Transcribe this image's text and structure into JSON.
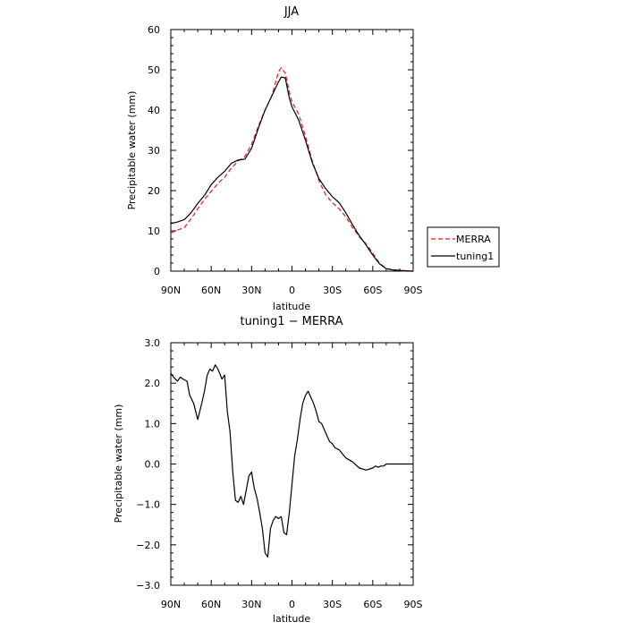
{
  "chart_data": [
    {
      "type": "line",
      "title": "JJA",
      "xlabel": "latitude",
      "ylabel": "Precipitable water (mm)",
      "xlim": [
        90,
        -90
      ],
      "ylim": [
        0,
        60
      ],
      "x_ticks": [
        90,
        60,
        30,
        0,
        -30,
        -60,
        -90
      ],
      "x_tick_labels": [
        "90N",
        "60N",
        "30N",
        "0",
        "30S",
        "60S",
        "90S"
      ],
      "y_ticks": [
        0,
        10,
        20,
        30,
        40,
        50,
        60
      ],
      "y_tick_labels": [
        "0",
        "10",
        "20",
        "30",
        "40",
        "50",
        "60"
      ],
      "legend_placement": "outside-right",
      "series": [
        {
          "name": "MERRA",
          "color": "#e41a1c",
          "dash": "dashed",
          "x": [
            90,
            85,
            80,
            75,
            70,
            65,
            60,
            55,
            50,
            45,
            40,
            35,
            30,
            25,
            20,
            15,
            10,
            8,
            5,
            2,
            0,
            -5,
            -10,
            -15,
            -20,
            -25,
            -30,
            -35,
            -40,
            -45,
            -50,
            -55,
            -60,
            -65,
            -70,
            -75,
            -80,
            -85,
            -90
          ],
          "values": [
            9.5,
            10.2,
            10.8,
            13.0,
            15.5,
            17.8,
            19.8,
            21.8,
            23.3,
            25.6,
            27.3,
            28.5,
            31.5,
            36.0,
            40.0,
            43.5,
            49.5,
            50.5,
            49.2,
            44.5,
            42.0,
            39.0,
            33.5,
            27.5,
            22.5,
            19.0,
            17.0,
            15.5,
            13.5,
            10.8,
            8.5,
            6.8,
            4.5,
            2.0,
            0.7,
            0.3,
            0.1,
            0.0,
            0.0
          ]
        },
        {
          "name": "tuning1",
          "color": "#000000",
          "dash": "solid",
          "x": [
            90,
            85,
            80,
            75,
            70,
            65,
            60,
            55,
            50,
            45,
            40,
            35,
            30,
            25,
            20,
            15,
            10,
            8,
            5,
            2,
            0,
            -5,
            -10,
            -15,
            -20,
            -25,
            -30,
            -35,
            -40,
            -45,
            -50,
            -55,
            -60,
            -65,
            -70,
            -75,
            -80,
            -85,
            -90
          ],
          "values": [
            11.8,
            12.2,
            12.8,
            14.5,
            16.8,
            18.8,
            21.5,
            23.3,
            24.8,
            26.8,
            27.6,
            27.8,
            30.5,
            35.5,
            40.0,
            43.5,
            47.0,
            48.2,
            48.0,
            43.0,
            40.8,
            37.5,
            32.5,
            27.0,
            23.0,
            20.5,
            18.5,
            17.0,
            14.5,
            11.5,
            8.8,
            6.5,
            4.0,
            1.8,
            0.6,
            0.3,
            0.2,
            0.1,
            0.0
          ]
        }
      ]
    },
    {
      "type": "line",
      "title": "tuning1 − MERRA",
      "xlabel": "latitude",
      "ylabel": "Precipitable water (mm)",
      "xlim": [
        90,
        -90
      ],
      "ylim": [
        -3.0,
        3.0
      ],
      "x_ticks": [
        90,
        60,
        30,
        0,
        -30,
        -60,
        -90
      ],
      "x_tick_labels": [
        "90N",
        "60N",
        "30N",
        "0",
        "30S",
        "60S",
        "90S"
      ],
      "y_ticks": [
        -3.0,
        -2.0,
        -1.0,
        0.0,
        1.0,
        2.0,
        3.0
      ],
      "y_tick_labels": [
        "−3.0",
        "−2.0",
        "−1.0",
        "0.0",
        "1.0",
        "2.0",
        "3.0"
      ],
      "series": [
        {
          "color": "#000000",
          "dash": "solid",
          "x": [
            90,
            88,
            85,
            83,
            81,
            78,
            76,
            73,
            70,
            67,
            65,
            63,
            61,
            59,
            57,
            55,
            52,
            50,
            48,
            46,
            44,
            42,
            40,
            38,
            36,
            34,
            32,
            30,
            28,
            26,
            24,
            22,
            20,
            18,
            16,
            14,
            12,
            10,
            8,
            6,
            4,
            2,
            0,
            -2,
            -4,
            -6,
            -8,
            -10,
            -12,
            -14,
            -16,
            -18,
            -20,
            -22,
            -24,
            -26,
            -28,
            -30,
            -32,
            -35,
            -40,
            -45,
            -50,
            -55,
            -60,
            -62,
            -64,
            -66,
            -68,
            -70,
            -72,
            -74,
            -76,
            -78,
            -80,
            -82,
            -84,
            -86,
            -88,
            -90
          ],
          "values": [
            2.25,
            2.15,
            2.05,
            2.15,
            2.1,
            2.05,
            1.7,
            1.5,
            1.1,
            1.5,
            1.8,
            2.2,
            2.35,
            2.3,
            2.45,
            2.35,
            2.1,
            2.2,
            1.3,
            0.8,
            -0.2,
            -0.9,
            -0.95,
            -0.8,
            -1.0,
            -0.65,
            -0.3,
            -0.2,
            -0.6,
            -0.85,
            -1.2,
            -1.6,
            -2.2,
            -2.3,
            -1.6,
            -1.4,
            -1.3,
            -1.35,
            -1.3,
            -1.7,
            -1.75,
            -1.2,
            -0.5,
            0.2,
            0.6,
            1.1,
            1.5,
            1.7,
            1.8,
            1.65,
            1.5,
            1.3,
            1.05,
            1.0,
            0.85,
            0.7,
            0.55,
            0.5,
            0.4,
            0.35,
            0.15,
            0.05,
            -0.1,
            -0.15,
            -0.1,
            -0.05,
            -0.08,
            -0.05,
            -0.05,
            0.0,
            0.0,
            0.0,
            0.0,
            0.0,
            0.0,
            0.0,
            0.0,
            0.0,
            0.0,
            0.0
          ]
        }
      ]
    }
  ]
}
